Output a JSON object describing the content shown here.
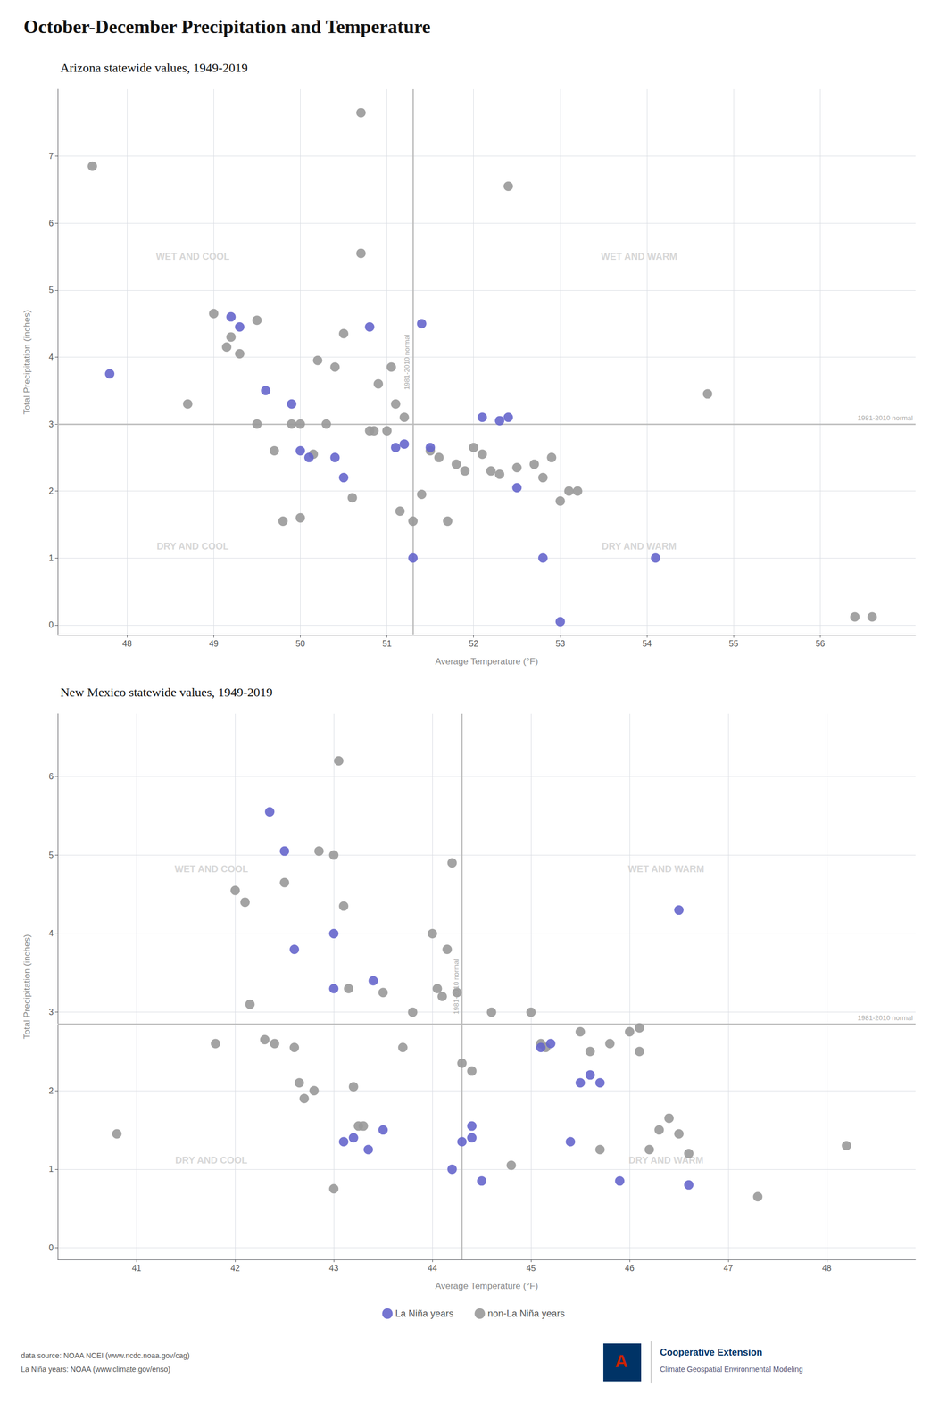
{
  "title": "October-December Precipitation and Temperature",
  "legend": "bottom",
  "footer": "data source: NOAA NCEI (www.ncdc.noaa.gov/cag)\nLa Niña years: NOAA (www.climate.gov/enso)",
  "annotations": [
    {
      "text": "A",
      "color": "#cc2200",
      "background": "#003366"
    },
    {
      "text": "Cooperative Extension",
      "color": "#003366"
    },
    {
      "text": "Climate Geospatial Environmental Modeling",
      "color": "#555577"
    }
  ],
  "chart_data": [
    {
      "type": "scatter",
      "subtitle": "Arizona statewide values, 1949-2019",
      "xlabel": "Average Temperature (°F)",
      "ylabel": "Total Precipitation (inches)",
      "xlim": [
        47.2,
        57.1
      ],
      "ylim": [
        -0.15,
        8.0
      ],
      "xticks": [
        48,
        49,
        50,
        51,
        52,
        53,
        54,
        55,
        56
      ],
      "yticks": [
        0,
        1,
        2,
        3,
        4,
        5,
        6,
        7
      ],
      "grid": true,
      "normal": {
        "x": 51.3,
        "y": 3.0,
        "label": "1981-2010 normal",
        "color": "#bbbbbb",
        "text_color": "#aaaaaa"
      },
      "quadrant_labels": {
        "texts": [
          "WET AND COOL",
          "WET AND WARM",
          "DRY AND COOL",
          "DRY AND WARM"
        ],
        "color": "#cccccc"
      },
      "series": [
        {
          "name": "La Niña years",
          "color": "#6666cc",
          "x": [
            47.8,
            49.2,
            49.3,
            49.6,
            49.9,
            50.0,
            50.1,
            50.4,
            50.5,
            50.8,
            51.1,
            51.2,
            51.3,
            51.4,
            51.5,
            52.1,
            52.3,
            52.4,
            52.5,
            52.8,
            53.0,
            54.1
          ],
          "values": [
            3.75,
            4.6,
            4.45,
            3.5,
            3.3,
            2.6,
            2.5,
            2.5,
            2.2,
            4.45,
            2.65,
            2.7,
            1.0,
            4.5,
            2.65,
            3.1,
            3.05,
            3.1,
            2.05,
            1.0,
            0.05,
            1.0
          ]
        },
        {
          "name": "non-La Niña years",
          "color": "#999999",
          "x": [
            47.6,
            48.7,
            49.0,
            49.15,
            49.2,
            49.3,
            49.5,
            49.5,
            49.7,
            49.8,
            49.9,
            50.0,
            50.0,
            50.15,
            50.2,
            50.3,
            50.4,
            50.5,
            50.6,
            50.7,
            50.8,
            50.85,
            50.9,
            51.0,
            51.05,
            51.1,
            51.15,
            51.2,
            51.3,
            51.4,
            51.5,
            51.6,
            51.7,
            51.8,
            51.9,
            52.0,
            52.1,
            52.2,
            52.3,
            52.4,
            52.5,
            52.7,
            52.8,
            52.9,
            53.0,
            53.1,
            53.2,
            54.7,
            56.4,
            56.6,
            50.7
          ],
          "values": [
            6.85,
            3.3,
            4.65,
            4.15,
            4.3,
            4.05,
            3.0,
            4.55,
            2.6,
            1.55,
            3.0,
            3.0,
            1.6,
            2.55,
            3.95,
            3.0,
            3.85,
            4.35,
            1.9,
            5.55,
            2.9,
            2.9,
            3.6,
            2.9,
            3.85,
            3.3,
            1.7,
            3.1,
            1.55,
            1.95,
            2.6,
            2.5,
            1.55,
            2.4,
            2.3,
            2.65,
            2.55,
            2.3,
            2.25,
            6.55,
            2.35,
            2.4,
            2.2,
            2.5,
            1.85,
            2.0,
            2.0,
            3.45,
            0.12,
            0.12,
            7.65
          ]
        }
      ]
    },
    {
      "type": "scatter",
      "subtitle": "New Mexico statewide values, 1949-2019",
      "xlabel": "Average Temperature (°F)",
      "ylabel": "Total Precipitation (inches)",
      "xlim": [
        40.2,
        48.9
      ],
      "ylim": [
        -0.15,
        6.8
      ],
      "xticks": [
        41,
        42,
        43,
        44,
        45,
        46,
        47,
        48
      ],
      "yticks": [
        0,
        1,
        2,
        3,
        4,
        5,
        6
      ],
      "grid": true,
      "normal": {
        "x": 44.3,
        "y": 2.85,
        "label": "1981-2010 normal",
        "color": "#bbbbbb",
        "text_color": "#aaaaaa"
      },
      "quadrant_labels": {
        "texts": [
          "WET AND COOL",
          "WET AND WARM",
          "DRY AND COOL",
          "DRY AND WARM"
        ],
        "color": "#cccccc"
      },
      "series": [
        {
          "name": "La Niña years",
          "color": "#6666cc",
          "x": [
            42.35,
            42.5,
            42.6,
            43.0,
            43.0,
            43.1,
            43.2,
            43.35,
            43.4,
            43.5,
            44.2,
            44.3,
            44.4,
            44.4,
            44.5,
            45.1,
            45.2,
            45.4,
            45.5,
            45.6,
            45.7,
            45.9,
            46.5,
            46.6
          ],
          "values": [
            5.55,
            5.05,
            3.8,
            3.3,
            4.0,
            1.35,
            1.4,
            1.25,
            3.4,
            1.5,
            1.0,
            1.35,
            1.4,
            1.55,
            0.85,
            2.55,
            2.6,
            1.35,
            2.1,
            2.2,
            2.1,
            0.85,
            4.3,
            0.8
          ]
        },
        {
          "name": "non-La Niña years",
          "color": "#999999",
          "x": [
            40.8,
            41.8,
            42.0,
            42.1,
            42.15,
            42.3,
            42.4,
            42.5,
            42.6,
            42.65,
            42.7,
            42.8,
            42.85,
            43.0,
            43.05,
            43.1,
            43.15,
            43.2,
            43.25,
            43.3,
            43.5,
            43.7,
            43.8,
            44.0,
            44.05,
            44.1,
            44.15,
            44.2,
            44.25,
            44.3,
            44.4,
            44.6,
            44.8,
            45.0,
            45.1,
            45.15,
            45.5,
            45.6,
            45.7,
            45.8,
            46.0,
            46.1,
            46.1,
            46.2,
            46.3,
            46.4,
            46.5,
            46.6,
            47.3,
            48.2,
            43.0
          ],
          "values": [
            1.45,
            2.6,
            4.55,
            4.4,
            3.1,
            2.65,
            2.6,
            4.65,
            2.55,
            2.1,
            1.9,
            2.0,
            5.05,
            5.0,
            6.2,
            4.35,
            3.3,
            2.05,
            1.55,
            1.55,
            3.25,
            2.55,
            3.0,
            4.0,
            3.3,
            3.2,
            3.8,
            4.9,
            3.25,
            2.35,
            2.25,
            3.0,
            1.05,
            3.0,
            2.6,
            2.55,
            2.75,
            2.5,
            1.25,
            2.6,
            2.75,
            2.5,
            2.8,
            1.25,
            1.5,
            1.65,
            1.45,
            1.2,
            0.65,
            1.3,
            0.75
          ]
        }
      ]
    }
  ]
}
